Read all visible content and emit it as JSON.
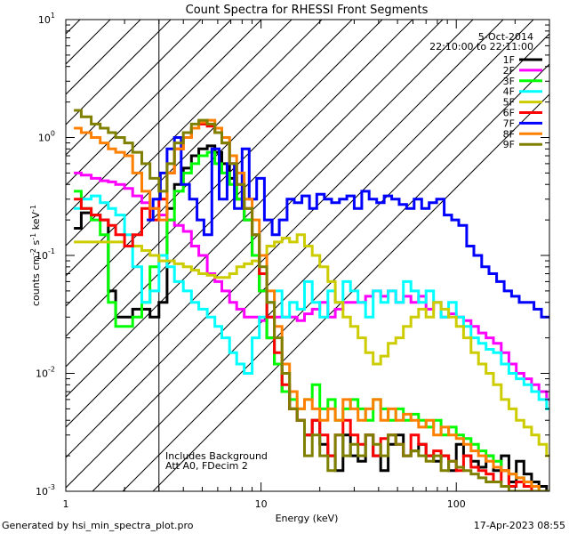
{
  "chart_data": {
    "type": "line",
    "title": "Count Spectra for RHESSI Front Segments",
    "xlabel": "Energy (keV)",
    "ylabel": {
      "main": "counts cm",
      "sup1": "-2",
      "mid1": " s",
      "sup2": "-1",
      "mid2": " keV",
      "sup3": "-1"
    },
    "xscale": "log",
    "yscale": "log",
    "xlim": [
      1.0,
      300
    ],
    "ylim": [
      0.001,
      10
    ],
    "x_ticks": [
      {
        "value": 1,
        "label": "1"
      },
      {
        "value": 10,
        "label": "10"
      },
      {
        "value": 100,
        "label": "100"
      }
    ],
    "y_ticks": [
      {
        "value": 0.001,
        "base": "10",
        "exp": "-3"
      },
      {
        "value": 0.01,
        "base": "10",
        "exp": "-2"
      },
      {
        "value": 0.1,
        "base": "10",
        "exp": "-1"
      },
      {
        "value": 1,
        "base": "10",
        "exp": "0"
      },
      {
        "value": 10,
        "base": "10",
        "exp": "1"
      }
    ],
    "hatched_region": [
      1.0,
      3.0
    ],
    "date": "5-Oct-2014",
    "time_range": "22:10:00 to 22:11:00",
    "annotations": [
      "Includes Background",
      "Att A0, FDecim 2"
    ],
    "footer_left": "Generated by hsi_min_spectra_plot.pro",
    "footer_right": "17-Apr-2023 08:55",
    "series": [
      {
        "name": "1F",
        "color": "#000000",
        "x": [
          1.1,
          1.2,
          1.35,
          1.5,
          1.65,
          1.8,
          2.0,
          2.2,
          2.45,
          2.7,
          3.0,
          3.3,
          3.6,
          4.0,
          4.4,
          4.8,
          5.3,
          5.8,
          6.3,
          6.9,
          7.5,
          8.2,
          9.0,
          9.8,
          10.7,
          11.7,
          12.8,
          14.0,
          15.3,
          16.7,
          18.3,
          20.0,
          22.0,
          24.0,
          26.3,
          28.7,
          31.4,
          34.3,
          37.5,
          41.0,
          44.8,
          49.0,
          53.6,
          58.6,
          64.1,
          70.0,
          76.5,
          83.6,
          91.4,
          100,
          109,
          119,
          130,
          142,
          155,
          170,
          186,
          203,
          222,
          243,
          265,
          290
        ],
        "y": [
          0.17,
          0.23,
          0.22,
          0.2,
          0.05,
          0.03,
          0.03,
          0.035,
          0.035,
          0.03,
          0.04,
          0.25,
          0.4,
          0.55,
          0.7,
          0.8,
          0.85,
          0.75,
          0.6,
          0.45,
          0.3,
          0.2,
          0.1,
          0.05,
          0.02,
          0.012,
          0.007,
          0.005,
          0.004,
          0.003,
          0.004,
          0.0025,
          0.002,
          0.0015,
          0.003,
          0.002,
          0.0018,
          0.003,
          0.002,
          0.0015,
          0.0025,
          0.003,
          0.002,
          0.0022,
          0.0025,
          0.002,
          0.0018,
          0.002,
          0.0015,
          0.0025,
          0.002,
          0.0018,
          0.0016,
          0.002,
          0.0015,
          0.002,
          0.0012,
          0.0018,
          0.0014,
          0.0012,
          0.0011,
          0.001
        ]
      },
      {
        "name": "2F",
        "color": "#ff00ff",
        "x": [
          1.1,
          1.2,
          1.35,
          1.5,
          1.65,
          1.8,
          2.0,
          2.2,
          2.45,
          2.7,
          3.0,
          3.3,
          3.6,
          4.0,
          4.4,
          4.8,
          5.3,
          5.8,
          6.3,
          6.9,
          7.5,
          8.2,
          9.0,
          9.8,
          10.7,
          11.7,
          12.8,
          14.0,
          15.3,
          16.7,
          18.3,
          20.0,
          22.0,
          24.0,
          26.3,
          28.7,
          31.4,
          34.3,
          37.5,
          41.0,
          44.8,
          49.0,
          53.6,
          58.6,
          64.1,
          70.0,
          76.5,
          83.6,
          91.4,
          100,
          109,
          119,
          130,
          142,
          155,
          170,
          186,
          203,
          222,
          243,
          265,
          290
        ],
        "y": [
          0.5,
          0.48,
          0.45,
          0.43,
          0.42,
          0.4,
          0.37,
          0.32,
          0.28,
          0.25,
          0.22,
          0.2,
          0.18,
          0.16,
          0.12,
          0.1,
          0.07,
          0.06,
          0.05,
          0.04,
          0.035,
          0.03,
          0.03,
          0.028,
          0.03,
          0.03,
          0.03,
          0.03,
          0.028,
          0.032,
          0.035,
          0.04,
          0.03,
          0.035,
          0.04,
          0.04,
          0.04,
          0.045,
          0.05,
          0.045,
          0.05,
          0.04,
          0.045,
          0.04,
          0.045,
          0.035,
          0.04,
          0.03,
          0.032,
          0.03,
          0.028,
          0.025,
          0.022,
          0.02,
          0.018,
          0.015,
          0.012,
          0.01,
          0.009,
          0.008,
          0.007,
          0.006
        ]
      },
      {
        "name": "3F",
        "color": "#00ff00",
        "x": [
          1.1,
          1.2,
          1.35,
          1.5,
          1.65,
          1.8,
          2.0,
          2.2,
          2.45,
          2.7,
          3.0,
          3.3,
          3.6,
          4.0,
          4.4,
          4.8,
          5.3,
          5.8,
          6.3,
          6.9,
          7.5,
          8.2,
          9.0,
          9.8,
          10.7,
          11.7,
          12.8,
          14.0,
          15.3,
          16.7,
          18.3,
          20.0,
          22.0,
          24.0,
          26.3,
          28.7,
          31.4,
          34.3,
          37.5,
          41.0,
          44.8,
          49.0,
          53.6,
          58.6,
          64.1,
          70.0,
          76.5,
          83.6,
          91.4,
          100,
          109,
          119,
          130,
          142,
          155,
          170,
          186,
          203,
          222,
          243,
          265,
          290
        ],
        "y": [
          0.35,
          0.25,
          0.2,
          0.15,
          0.04,
          0.025,
          0.025,
          0.03,
          0.04,
          0.08,
          0.1,
          0.2,
          0.35,
          0.5,
          0.6,
          0.7,
          0.75,
          0.6,
          0.5,
          0.4,
          0.3,
          0.2,
          0.1,
          0.05,
          0.02,
          0.012,
          0.007,
          0.006,
          0.005,
          0.006,
          0.008,
          0.005,
          0.006,
          0.004,
          0.005,
          0.006,
          0.005,
          0.004,
          0.006,
          0.005,
          0.004,
          0.005,
          0.004,
          0.0045,
          0.004,
          0.0035,
          0.004,
          0.003,
          0.0035,
          0.003,
          0.0028,
          0.0025,
          0.0022,
          0.002,
          0.0018,
          0.0015,
          0.0014,
          0.0013,
          0.0012,
          0.0011,
          0.001,
          0.001
        ]
      },
      {
        "name": "4F",
        "color": "#00ffff",
        "x": [
          1.1,
          1.2,
          1.35,
          1.5,
          1.65,
          1.8,
          2.0,
          2.2,
          2.45,
          2.7,
          3.0,
          3.3,
          3.6,
          4.0,
          4.4,
          4.8,
          5.3,
          5.8,
          6.3,
          6.9,
          7.5,
          8.2,
          9.0,
          9.8,
          10.7,
          11.7,
          12.8,
          14.0,
          15.3,
          16.7,
          18.3,
          20.0,
          22.0,
          24.0,
          26.3,
          28.7,
          31.4,
          34.3,
          37.5,
          41.0,
          44.8,
          49.0,
          53.6,
          58.6,
          64.1,
          70.0,
          76.5,
          83.6,
          91.4,
          100,
          109,
          119,
          130,
          142,
          155,
          170,
          186,
          203,
          222,
          243,
          265,
          290
        ],
        "y": [
          0.25,
          0.3,
          0.32,
          0.28,
          0.25,
          0.22,
          0.15,
          0.08,
          0.04,
          0.05,
          0.1,
          0.08,
          0.06,
          0.05,
          0.04,
          0.035,
          0.03,
          0.025,
          0.02,
          0.015,
          0.012,
          0.01,
          0.02,
          0.03,
          0.04,
          0.05,
          0.03,
          0.04,
          0.035,
          0.06,
          0.04,
          0.03,
          0.05,
          0.04,
          0.06,
          0.05,
          0.04,
          0.03,
          0.05,
          0.04,
          0.05,
          0.04,
          0.06,
          0.05,
          0.04,
          0.05,
          0.04,
          0.03,
          0.04,
          0.03,
          0.025,
          0.02,
          0.018,
          0.016,
          0.015,
          0.012,
          0.01,
          0.009,
          0.008,
          0.007,
          0.006,
          0.005
        ]
      },
      {
        "name": "5F",
        "color": "#cccc00",
        "x": [
          1.1,
          1.2,
          1.35,
          1.5,
          1.65,
          1.8,
          2.0,
          2.2,
          2.45,
          2.7,
          3.0,
          3.3,
          3.6,
          4.0,
          4.4,
          4.8,
          5.3,
          5.8,
          6.3,
          6.9,
          7.5,
          8.2,
          9.0,
          9.8,
          10.7,
          11.7,
          12.8,
          14.0,
          15.3,
          16.7,
          18.3,
          20.0,
          22.0,
          24.0,
          26.3,
          28.7,
          31.4,
          34.3,
          37.5,
          41.0,
          44.8,
          49.0,
          53.6,
          58.6,
          64.1,
          70.0,
          76.5,
          83.6,
          91.4,
          100,
          109,
          119,
          130,
          142,
          155,
          170,
          186,
          203,
          222,
          243,
          265,
          290
        ],
        "y": [
          0.13,
          0.13,
          0.13,
          0.13,
          0.13,
          0.13,
          0.12,
          0.12,
          0.11,
          0.1,
          0.09,
          0.09,
          0.085,
          0.08,
          0.075,
          0.07,
          0.068,
          0.065,
          0.065,
          0.07,
          0.08,
          0.085,
          0.09,
          0.1,
          0.12,
          0.13,
          0.14,
          0.13,
          0.15,
          0.12,
          0.1,
          0.08,
          0.06,
          0.04,
          0.03,
          0.025,
          0.02,
          0.015,
          0.012,
          0.014,
          0.018,
          0.02,
          0.025,
          0.03,
          0.035,
          0.03,
          0.04,
          0.035,
          0.03,
          0.025,
          0.02,
          0.015,
          0.012,
          0.01,
          0.008,
          0.006,
          0.005,
          0.004,
          0.0035,
          0.003,
          0.0025,
          0.002
        ]
      },
      {
        "name": "6F",
        "color": "#ff0000",
        "x": [
          1.1,
          1.2,
          1.35,
          1.5,
          1.65,
          1.8,
          2.0,
          2.2,
          2.45,
          2.7,
          3.0,
          3.3,
          3.6,
          4.0,
          4.4,
          4.8,
          5.3,
          5.8,
          6.3,
          6.9,
          7.5,
          8.2,
          9.0,
          9.8,
          10.7,
          11.7,
          12.8,
          14.0,
          15.3,
          16.7,
          18.3,
          20.0,
          22.0,
          24.0,
          26.3,
          28.7,
          31.4,
          34.3,
          37.5,
          41.0,
          44.8,
          49.0,
          53.6,
          58.6,
          64.1,
          70.0,
          76.5,
          83.6,
          91.4,
          100,
          109,
          119,
          130,
          142,
          155,
          170,
          186,
          203,
          222,
          243,
          265,
          290
        ],
        "y": [
          0.3,
          0.25,
          0.22,
          0.2,
          0.18,
          0.15,
          0.12,
          0.15,
          0.25,
          0.2,
          0.3,
          0.5,
          0.8,
          1.0,
          1.2,
          1.3,
          1.25,
          1.1,
          0.9,
          0.6,
          0.4,
          0.25,
          0.15,
          0.07,
          0.03,
          0.015,
          0.008,
          0.005,
          0.004,
          0.003,
          0.004,
          0.003,
          0.002,
          0.003,
          0.004,
          0.003,
          0.0025,
          0.003,
          0.002,
          0.0028,
          0.003,
          0.0025,
          0.002,
          0.003,
          0.0025,
          0.002,
          0.0022,
          0.002,
          0.0018,
          0.0015,
          0.002,
          0.0016,
          0.0015,
          0.0014,
          0.0012,
          0.0015,
          0.0011,
          0.0012,
          0.0011,
          0.001,
          0.001,
          0.001
        ]
      },
      {
        "name": "7F",
        "color": "#0000ff",
        "x": [
          2.6,
          2.8,
          3.05,
          3.3,
          3.6,
          3.9,
          4.3,
          4.7,
          5.1,
          5.6,
          6.1,
          6.7,
          7.3,
          8.0,
          8.7,
          9.5,
          10.4,
          11.4,
          12.4,
          13.6,
          14.8,
          16.2,
          17.7,
          19.3,
          21.1,
          23.0,
          25.2,
          27.5,
          30.0,
          32.8,
          35.8,
          39.1,
          42.7,
          46.7,
          51.0,
          55.7,
          60.8,
          66.5,
          72.6,
          79.3,
          86.7,
          94.7,
          103,
          113,
          123,
          135,
          147,
          161,
          176,
          192,
          210,
          229,
          250,
          273,
          290
        ],
        "y": [
          0.2,
          0.3,
          0.5,
          0.8,
          1.0,
          0.4,
          0.3,
          0.2,
          0.15,
          0.8,
          0.3,
          0.6,
          0.25,
          0.8,
          0.3,
          0.45,
          0.2,
          0.15,
          0.2,
          0.3,
          0.28,
          0.32,
          0.25,
          0.33,
          0.3,
          0.28,
          0.3,
          0.32,
          0.25,
          0.35,
          0.3,
          0.28,
          0.32,
          0.3,
          0.27,
          0.25,
          0.3,
          0.25,
          0.28,
          0.3,
          0.22,
          0.2,
          0.18,
          0.12,
          0.1,
          0.08,
          0.07,
          0.06,
          0.05,
          0.045,
          0.04,
          0.04,
          0.035,
          0.03,
          0.03
        ]
      },
      {
        "name": "8F",
        "color": "#ff8000",
        "x": [
          1.1,
          1.2,
          1.35,
          1.5,
          1.65,
          1.8,
          2.0,
          2.2,
          2.45,
          2.7,
          3.0,
          3.3,
          3.6,
          4.0,
          4.4,
          4.8,
          5.3,
          5.8,
          6.3,
          6.9,
          7.5,
          8.2,
          9.0,
          9.8,
          10.7,
          11.7,
          12.8,
          14.0,
          15.3,
          16.7,
          18.3,
          20.0,
          22.0,
          24.0,
          26.3,
          28.7,
          31.4,
          34.3,
          37.5,
          41.0,
          44.8,
          49.0,
          53.6,
          58.6,
          64.1,
          70.0,
          76.5,
          83.6,
          91.4,
          100,
          109,
          119,
          130,
          142,
          155,
          170,
          186,
          203,
          222,
          243,
          265,
          290
        ],
        "y": [
          1.2,
          1.1,
          1.0,
          0.9,
          0.8,
          0.75,
          0.7,
          0.5,
          0.35,
          0.25,
          0.2,
          0.5,
          0.8,
          1.0,
          1.2,
          1.35,
          1.4,
          1.2,
          1.0,
          0.7,
          0.5,
          0.3,
          0.2,
          0.1,
          0.05,
          0.025,
          0.012,
          0.007,
          0.005,
          0.006,
          0.005,
          0.004,
          0.005,
          0.004,
          0.006,
          0.005,
          0.004,
          0.005,
          0.006,
          0.004,
          0.005,
          0.004,
          0.0045,
          0.004,
          0.0035,
          0.004,
          0.003,
          0.0035,
          0.003,
          0.0028,
          0.0025,
          0.0022,
          0.002,
          0.0018,
          0.0016,
          0.0015,
          0.0014,
          0.0013,
          0.0012,
          0.0011,
          0.001,
          0.001
        ]
      },
      {
        "name": "9F",
        "color": "#808000",
        "x": [
          1.1,
          1.2,
          1.35,
          1.5,
          1.65,
          1.8,
          2.0,
          2.2,
          2.45,
          2.7,
          3.0,
          3.3,
          3.6,
          4.0,
          4.4,
          4.8,
          5.3,
          5.8,
          6.3,
          6.9,
          7.5,
          8.2,
          9.0,
          9.8,
          10.7,
          11.7,
          12.8,
          14.0,
          15.3,
          16.7,
          18.3,
          20.0,
          22.0,
          24.0,
          26.3,
          28.7,
          31.4,
          34.3,
          37.5,
          41.0,
          44.8,
          49.0,
          53.6,
          58.6,
          64.1,
          70.0,
          76.5,
          83.6,
          91.4,
          100,
          109,
          119,
          130,
          142,
          155,
          170,
          186,
          203,
          222,
          243,
          265,
          290
        ],
        "y": [
          1.7,
          1.5,
          1.3,
          1.2,
          1.1,
          1.0,
          0.9,
          0.75,
          0.6,
          0.45,
          0.35,
          0.6,
          0.9,
          1.1,
          1.3,
          1.4,
          1.3,
          1.1,
          0.9,
          0.6,
          0.4,
          0.25,
          0.15,
          0.08,
          0.04,
          0.02,
          0.01,
          0.005,
          0.004,
          0.002,
          0.003,
          0.002,
          0.0015,
          0.003,
          0.002,
          0.0025,
          0.002,
          0.003,
          0.0025,
          0.002,
          0.003,
          0.0025,
          0.002,
          0.0022,
          0.002,
          0.0018,
          0.002,
          0.0015,
          0.0018,
          0.0016,
          0.0015,
          0.0014,
          0.0013,
          0.0012,
          0.0012,
          0.0011,
          0.001,
          0.001,
          0.001,
          0.001,
          0.001,
          0.001
        ]
      }
    ]
  }
}
